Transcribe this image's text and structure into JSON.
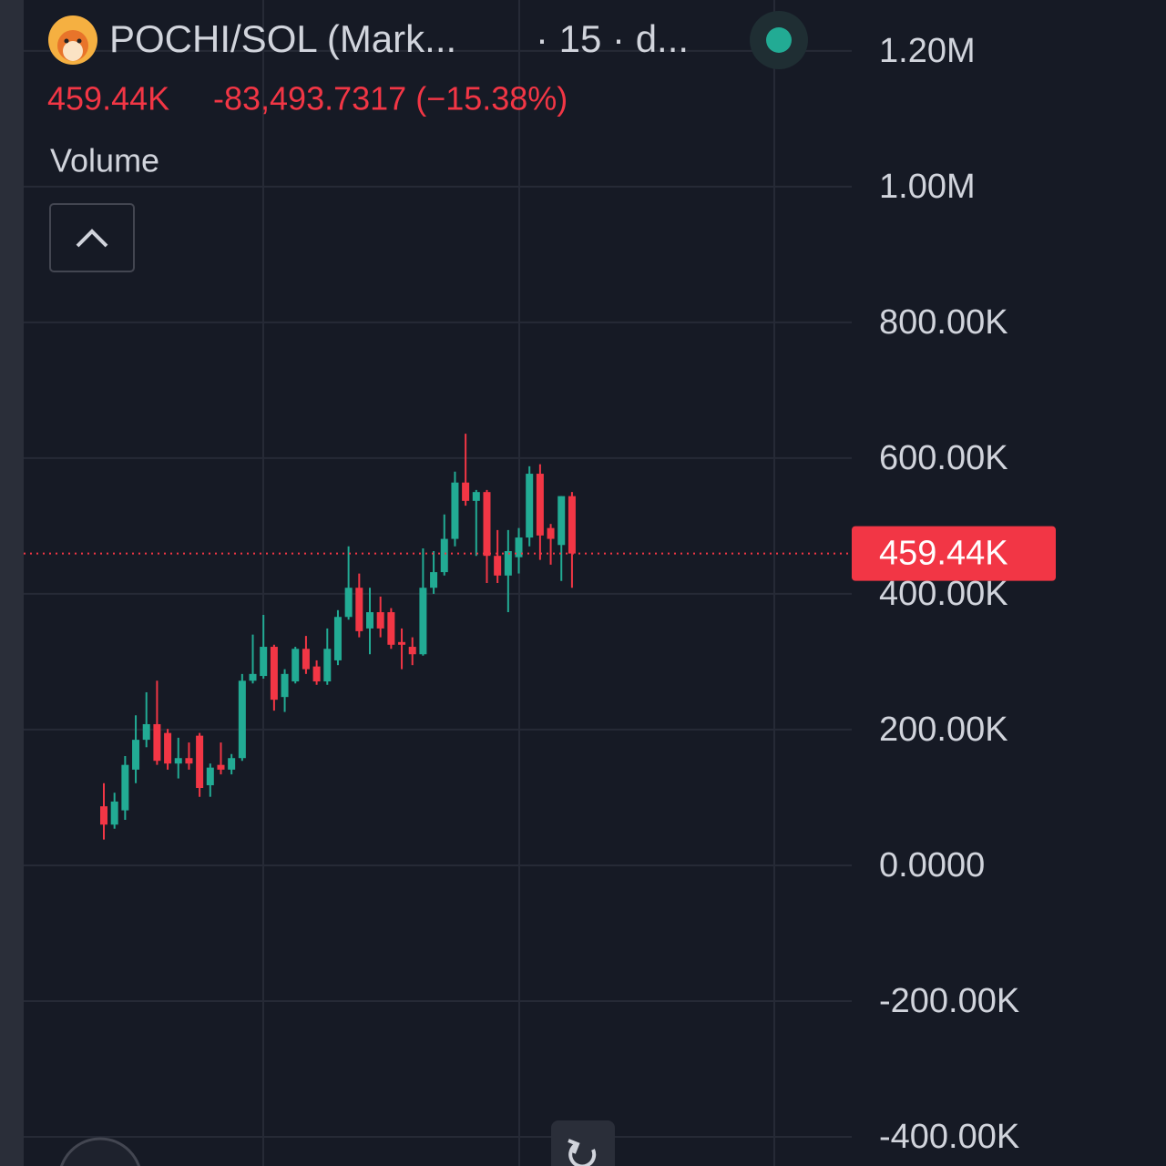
{
  "chart_data": {
    "type": "candlestick",
    "title": "POCHI/SOL (Mark...",
    "subtitle": "· 15 · d...",
    "change": "-83,493.7317 (−15.38%)",
    "pane_label": "Volume",
    "last": {
      "value": 459440,
      "label": "459.44K"
    },
    "up_color": "#22ab94",
    "down_color": "#f23645",
    "grid": true,
    "ylim": [
      -443000,
      1275000
    ],
    "yticks": [
      {
        "value": 1200000,
        "label": "1.20M"
      },
      {
        "value": 1000000,
        "label": "1.00M"
      },
      {
        "value": 800000,
        "label": "800.00K"
      },
      {
        "value": 600000,
        "label": "600.00K"
      },
      {
        "value": 400000,
        "label": "400.00K"
      },
      {
        "value": 200000,
        "label": "200.00K"
      },
      {
        "value": 0,
        "label": "0.0000"
      },
      {
        "value": -200000,
        "label": "-200.00K"
      },
      {
        "value": -400000,
        "label": "-400.00K"
      }
    ],
    "open": [
      87000,
      60000,
      81000,
      141000,
      185000,
      208000,
      195000,
      150000,
      158000,
      191000,
      118000,
      148000,
      141000,
      158000,
      272000,
      279000,
      322000,
      248000,
      271000,
      319000,
      293000,
      271000,
      302000,
      366000,
      409000,
      349000,
      373000,
      373000,
      329000,
      322000,
      311000,
      409000,
      432000,
      481000,
      564000,
      537000,
      550000,
      456000,
      427000,
      454000,
      483000,
      577000,
      497000,
      472000,
      544000
    ],
    "high": [
      121000,
      107000,
      161000,
      221000,
      255000,
      272000,
      201000,
      188000,
      181000,
      195000,
      150000,
      181000,
      164000,
      282000,
      340000,
      369000,
      325000,
      289000,
      322000,
      338000,
      302000,
      349000,
      376000,
      470000,
      430000,
      409000,
      396000,
      379000,
      349000,
      336000,
      467000,
      463000,
      517000,
      580000,
      636000,
      553000,
      553000,
      494000,
      494000,
      497000,
      588000,
      591000,
      503000,
      544000,
      550000
    ],
    "low": [
      38000,
      54000,
      67000,
      121000,
      174000,
      148000,
      141000,
      128000,
      141000,
      101000,
      101000,
      134000,
      134000,
      154000,
      268000,
      275000,
      228000,
      226000,
      268000,
      282000,
      266000,
      266000,
      295000,
      362000,
      336000,
      311000,
      336000,
      319000,
      289000,
      295000,
      309000,
      400000,
      427000,
      470000,
      530000,
      456000,
      416000,
      416000,
      373000,
      430000,
      470000,
      450000,
      443000,
      419000,
      409000
    ],
    "close": [
      60000,
      94000,
      148000,
      185000,
      208000,
      154000,
      150000,
      158000,
      150000,
      114000,
      144000,
      141000,
      158000,
      272000,
      282000,
      322000,
      244000,
      282000,
      319000,
      289000,
      271000,
      319000,
      366000,
      409000,
      345000,
      373000,
      349000,
      325000,
      325000,
      311000,
      409000,
      432000,
      481000,
      564000,
      537000,
      550000,
      456000,
      427000,
      463000,
      483000,
      577000,
      486000,
      481000,
      544000,
      459440
    ]
  }
}
